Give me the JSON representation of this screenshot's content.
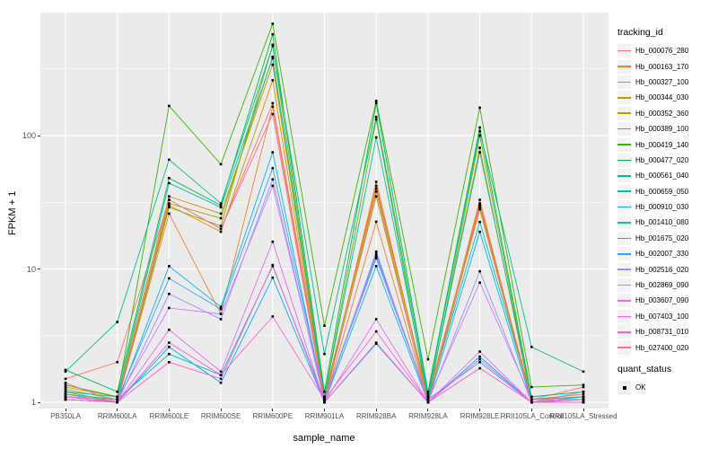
{
  "figure": {
    "panel_bg": "#ebebeb",
    "grid_color": "#ffffff",
    "tick_label_color": "#4d4d4d",
    "point_color": "#000000"
  },
  "axes": {
    "xlabel": "sample_name",
    "ylabel": "FPKM + 1",
    "y_tick_labels": [
      "100",
      "10",
      "1"
    ]
  },
  "legend": {
    "tracking_title": "tracking_id",
    "quant_title": "quant_status",
    "quant_items": [
      {
        "label": "OK"
      }
    ]
  },
  "chart_data": {
    "type": "line",
    "title": "",
    "xlabel": "sample_name",
    "ylabel": "FPKM + 1",
    "y_scale": "log10",
    "y_ticks": [
      1,
      10,
      100
    ],
    "y_minor_ticks": [
      3.1623,
      31.623,
      316.23
    ],
    "ylim": [
      0.9,
      840
    ],
    "grid": true,
    "legend_position": "right",
    "point_shape": "black-square",
    "categories": [
      "PB350LA",
      "RRIM600LA",
      "RRIM600LE",
      "RRIM600SE",
      "RRIM600PE",
      "RRIM901LA",
      "RRIM928BA",
      "RRIM928LA",
      "RRIM928LE",
      "RRII105LA_Control",
      "RRII105LA_Stressed"
    ],
    "series": [
      {
        "name": "Hb_000076_280",
        "color": "#F8766D",
        "values": [
          1.5,
          2.0,
          33,
          20,
          175,
          1.1,
          42,
          1.1,
          31,
          1.05,
          1.3
        ]
      },
      {
        "name": "Hb_000163_170",
        "color": "#EA8331",
        "values": [
          1.15,
          1.0,
          26,
          4.6,
          165,
          1.0,
          22.6,
          1.0,
          33,
          1.0,
          1.05
        ]
      },
      {
        "name": "Hb_000327_100",
        "color": "#D89000",
        "values": [
          1.1,
          1.0,
          30,
          19,
          260,
          1.05,
          45,
          1.05,
          81,
          1.0,
          1.1
        ]
      },
      {
        "name": "Hb_000344_030",
        "color": "#C09B00",
        "values": [
          1.3,
          1.1,
          35,
          26,
          340,
          1.1,
          40,
          1.1,
          30,
          1.05,
          1.15
        ]
      },
      {
        "name": "Hb_000352_360",
        "color": "#A3A500",
        "values": [
          1.25,
          1.05,
          31,
          24,
          390,
          1.05,
          35,
          1.0,
          28,
          1.0,
          1.1
        ]
      },
      {
        "name": "Hb_000389_100",
        "color": "#7CAE00",
        "values": [
          1.2,
          1.0,
          29,
          21,
          480,
          1.1,
          132,
          1.0,
          100,
          1.05,
          1.1
        ]
      },
      {
        "name": "Hb_000419_140",
        "color": "#39B600",
        "values": [
          1.35,
          1.1,
          167,
          61,
          690,
          3.75,
          182,
          2.1,
          162,
          1.3,
          1.35
        ]
      },
      {
        "name": "Hb_000477_020",
        "color": "#00BB4E",
        "values": [
          1.75,
          1.2,
          48,
          30,
          575,
          1.2,
          175,
          1.2,
          115,
          1.1,
          1.2
        ]
      },
      {
        "name": "Hb_000561_040",
        "color": "#00C087",
        "values": [
          1.7,
          4.0,
          66,
          31,
          470,
          2.3,
          138,
          1.15,
          108,
          2.6,
          1.7
        ]
      },
      {
        "name": "Hb_000659_050",
        "color": "#00C0AF",
        "values": [
          1.2,
          1.1,
          44,
          29,
          380,
          1.1,
          97,
          1.1,
          75,
          1.1,
          1.2
        ]
      },
      {
        "name": "Hb_000910_030",
        "color": "#00BFC4",
        "values": [
          1.15,
          1.05,
          2.3,
          1.6,
          10.5,
          1.05,
          13,
          1.05,
          22.5,
          1.05,
          1.1
        ]
      },
      {
        "name": "Hb_001410_080",
        "color": "#00B8E7",
        "values": [
          1.1,
          1.0,
          10.5,
          5.2,
          75,
          1.0,
          10.5,
          1.0,
          19,
          1.0,
          1.05
        ]
      },
      {
        "name": "Hb_001675_020",
        "color": "#00ACFC",
        "values": [
          1.05,
          1.0,
          2.6,
          1.4,
          8.6,
          1.0,
          2.75,
          1.0,
          2.2,
          1.0,
          1.0
        ]
      },
      {
        "name": "Hb_002007_330",
        "color": "#35A2FF",
        "values": [
          1.1,
          1.05,
          8.5,
          5.0,
          57,
          1.05,
          12,
          1.05,
          2.0,
          1.0,
          1.05
        ]
      },
      {
        "name": "Hb_002516_020",
        "color": "#9590FF",
        "values": [
          1.05,
          1.0,
          6.5,
          4.2,
          47,
          1.0,
          13.5,
          1.0,
          9.6,
          1.0,
          1.0
        ]
      },
      {
        "name": "Hb_002869_090",
        "color": "#C77CFF",
        "values": [
          1.1,
          1.05,
          5.1,
          4.6,
          42,
          1.05,
          12.5,
          1.05,
          7.9,
          1.05,
          1.05
        ]
      },
      {
        "name": "Hb_003607_090",
        "color": "#E76BF3",
        "values": [
          1.05,
          1.0,
          3.5,
          1.7,
          16,
          1.0,
          4.2,
          1.0,
          2.4,
          1.0,
          1.0
        ]
      },
      {
        "name": "Hb_007403_100",
        "color": "#FA62DB",
        "values": [
          1.1,
          1.0,
          2.8,
          1.6,
          4.4,
          1.05,
          3.4,
          1.0,
          2.1,
          1.0,
          1.05
        ]
      },
      {
        "name": "Hb_008731_010",
        "color": "#FF61CC",
        "values": [
          1.05,
          1.0,
          2.0,
          1.5,
          10.7,
          1.0,
          2.8,
          1.0,
          1.8,
          1.0,
          1.0
        ]
      },
      {
        "name": "Hb_027400_020",
        "color": "#FF6A98",
        "values": [
          1.4,
          1.0,
          33,
          20,
          145,
          1.0,
          38,
          1.0,
          29,
          1.0,
          1.2
        ]
      }
    ]
  }
}
